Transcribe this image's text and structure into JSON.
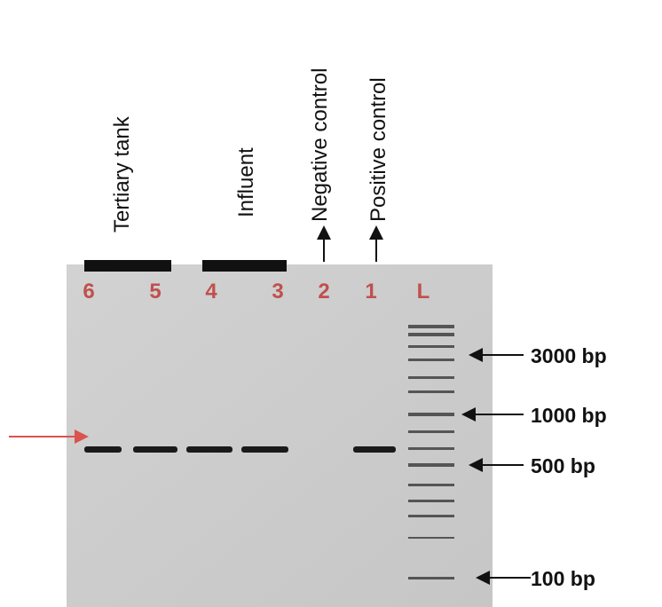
{
  "groups": [
    "Tertiary tank",
    "Influent"
  ],
  "controls": [
    "Negative control",
    "Positive control"
  ],
  "lanes": [
    "6",
    "5",
    "4",
    "3",
    "2",
    "1",
    "L"
  ],
  "ladder": [
    "3000 bp",
    "1000 bp",
    "500 bp",
    "100 bp"
  ]
}
